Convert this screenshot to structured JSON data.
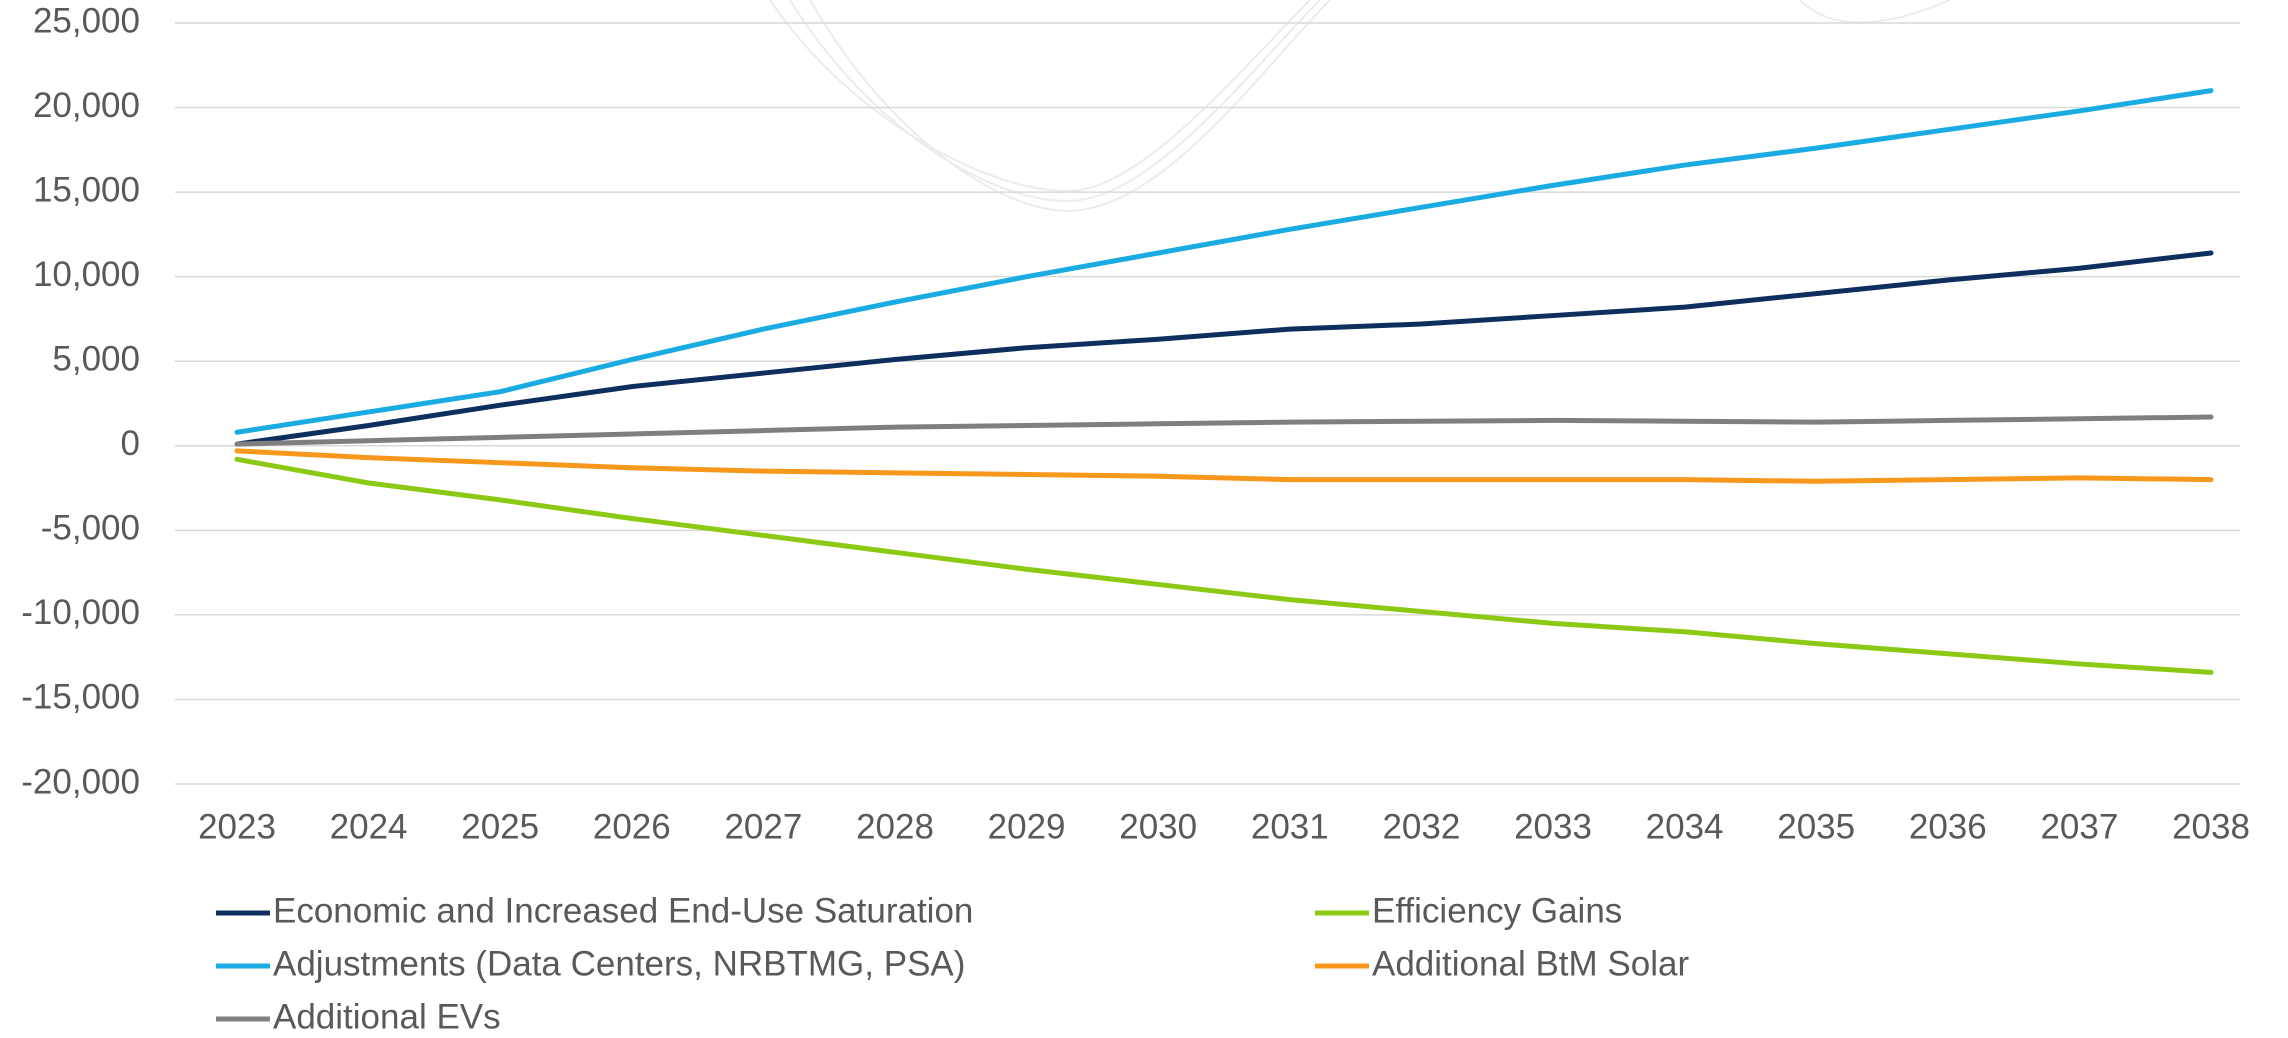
{
  "chart_data": {
    "type": "line",
    "categories": [
      "2023",
      "2024",
      "2025",
      "2026",
      "2027",
      "2028",
      "2029",
      "2030",
      "2031",
      "2032",
      "2033",
      "2034",
      "2035",
      "2036",
      "2037",
      "2038"
    ],
    "series": [
      {
        "name": "Economic and Increased End-Use Saturation",
        "color": "#0e2e5e",
        "values": [
          100,
          1200,
          2400,
          3500,
          4300,
          5100,
          5800,
          6300,
          6900,
          7200,
          7700,
          8200,
          9000,
          9800,
          10500,
          11400
        ]
      },
      {
        "name": "Efficiency Gains",
        "color": "#8cc914",
        "values": [
          -800,
          -2200,
          -3200,
          -4300,
          -5300,
          -6300,
          -7300,
          -8200,
          -9100,
          -9800,
          -10500,
          -11000,
          -11700,
          -12300,
          -12900,
          -13400
        ]
      },
      {
        "name": "Adjustments (Data Centers, NRBTMG, PSA)",
        "color": "#1aabe3",
        "values": [
          800,
          2000,
          3200,
          5100,
          6900,
          8500,
          10000,
          11400,
          12800,
          14100,
          15400,
          16600,
          17600,
          18700,
          19800,
          21000
        ]
      },
      {
        "name": "Additional BtM Solar",
        "color": "#f7971c",
        "values": [
          -300,
          -700,
          -1000,
          -1300,
          -1500,
          -1600,
          -1700,
          -1800,
          -2000,
          -2000,
          -2000,
          -2000,
          -2100,
          -2000,
          -1900,
          -2000
        ]
      },
      {
        "name": "Additional EVs",
        "color": "#7f7f7f",
        "values": [
          100,
          300,
          500,
          700,
          900,
          1100,
          1200,
          1300,
          1400,
          1450,
          1500,
          1450,
          1400,
          1500,
          1600,
          1700
        ]
      }
    ],
    "ylim": [
      -20000,
      25000
    ],
    "yticks": [
      {
        "value": -20000,
        "label": "-20,000"
      },
      {
        "value": -15000,
        "label": "-15,000"
      },
      {
        "value": -10000,
        "label": "-10,000"
      },
      {
        "value": -5000,
        "label": "-5,000"
      },
      0,
      {
        "value": 5000,
        "label": "5,000"
      },
      {
        "value": 10000,
        "label": "10,000"
      },
      {
        "value": 15000,
        "label": "15,000"
      },
      {
        "value": 20000,
        "label": "20,000"
      },
      {
        "value": 25000,
        "label": "25,000"
      }
    ],
    "grid": true
  }
}
